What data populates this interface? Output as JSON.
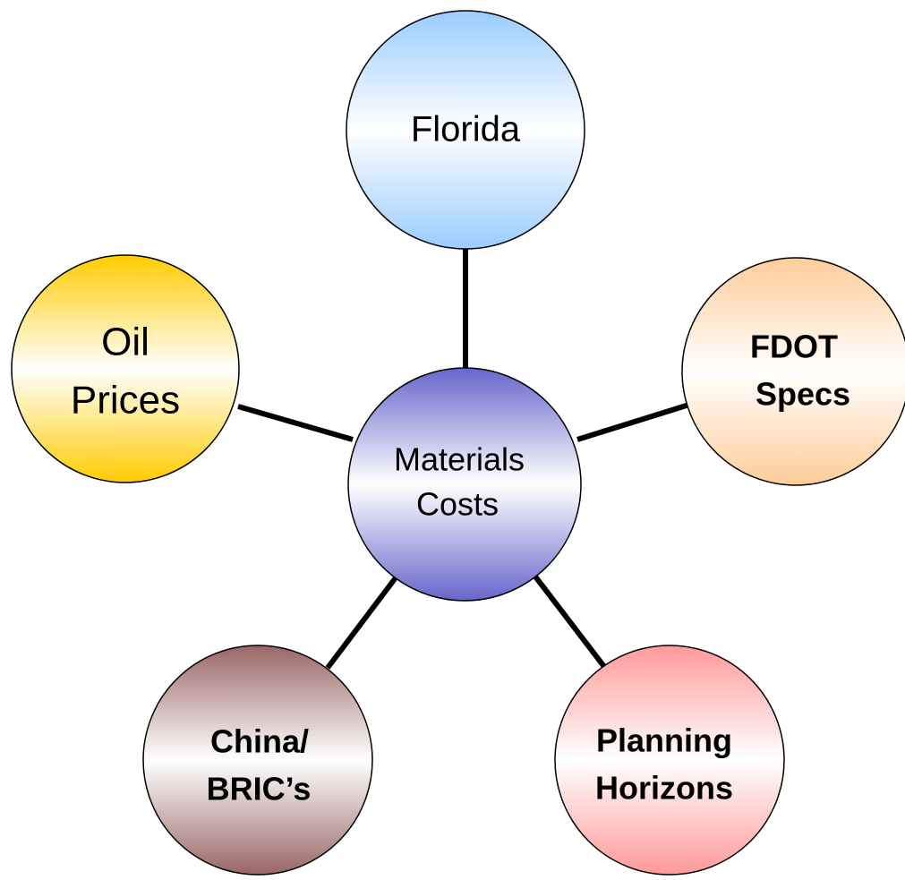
{
  "nodes": [
    {
      "label": [
        "Materials",
        "Costs"
      ]
    },
    {
      "label": [
        "Florida"
      ]
    },
    {
      "label": [
        "FDOT",
        "Specs"
      ]
    },
    {
      "label": [
        "Planning",
        "Horizons"
      ]
    },
    {
      "label": [
        "China/",
        "BRIC’s"
      ]
    },
    {
      "label": [
        "Oil",
        "Prices"
      ]
    }
  ]
}
